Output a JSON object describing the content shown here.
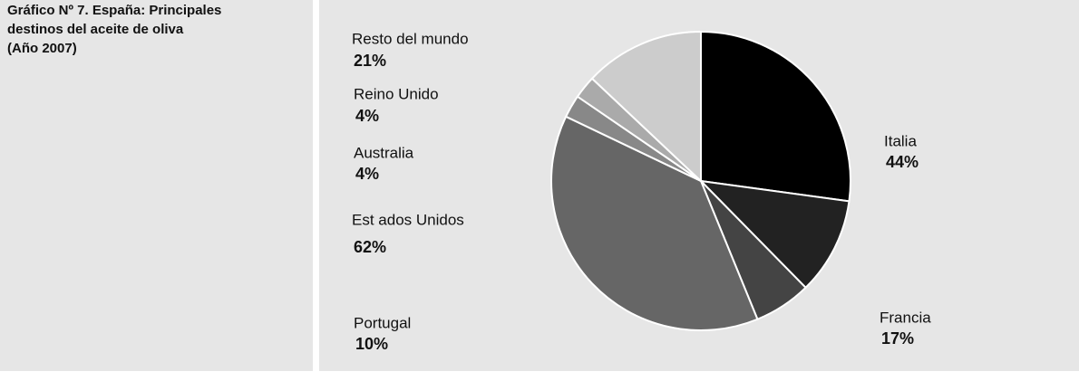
{
  "chart_data": {
    "type": "pie",
    "title": [
      "Gráfico Nº 7. España: Principales",
      "destinos del aceite de oliva",
      "(Año 2007)"
    ],
    "categories": [
      "Italia",
      "Francia",
      "Portugal",
      "Est ados Unidos",
      "Australia",
      "Reino Unido",
      "Resto del mundo"
    ],
    "values": [
      44,
      17,
      10,
      62,
      4,
      4,
      21
    ],
    "value_labels": [
      "44%",
      "17%",
      "10%",
      "62%",
      "4%",
      "4%",
      "21%"
    ],
    "colors": [
      "#000000",
      "#222222",
      "#444444",
      "#666666",
      "#888888",
      "#aaaaaa",
      "#cccccc"
    ]
  }
}
